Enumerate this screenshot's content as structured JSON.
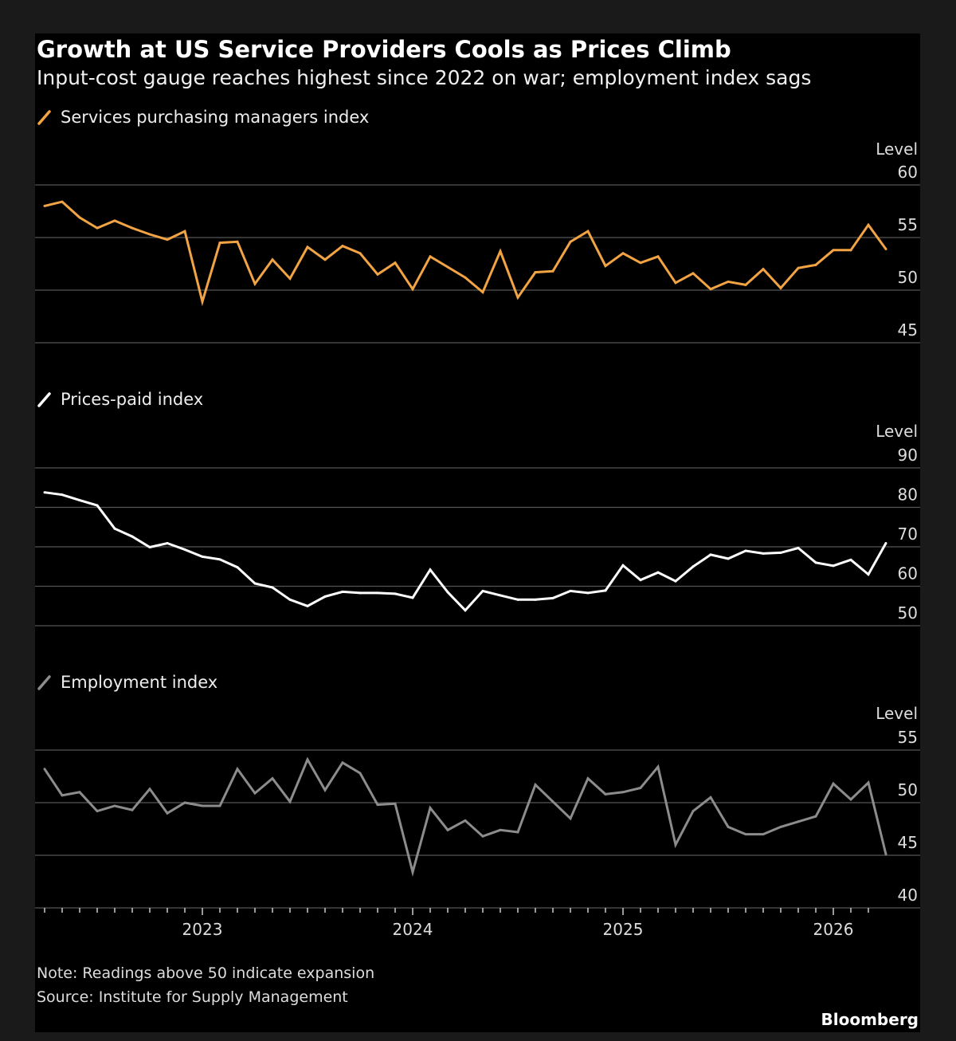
{
  "header": {
    "title": "Growth at US Service Providers Cools as Prices Climb",
    "subtitle": "Input-cost gauge reaches highest since 2022 on war; employment index sags"
  },
  "footer": {
    "note": "Note: Readings above 50 indicate expansion",
    "source": "Source: Institute for Supply Management",
    "brand": "Bloomberg"
  },
  "chart_data": [
    {
      "type": "line",
      "legend": "Services purchasing managers index",
      "color": "#f2a444",
      "ylabel": "Level",
      "ylim": [
        45,
        60
      ],
      "yticks": [
        60,
        55,
        50,
        45
      ],
      "grid": true,
      "x": [
        "2022-03",
        "2022-04",
        "2022-05",
        "2022-06",
        "2022-07",
        "2022-08",
        "2022-09",
        "2022-10",
        "2022-11",
        "2022-12",
        "2023-01",
        "2023-02",
        "2023-03",
        "2023-04",
        "2023-05",
        "2023-06",
        "2023-07",
        "2023-08",
        "2023-09",
        "2023-10",
        "2023-11",
        "2023-12",
        "2024-01",
        "2024-02",
        "2024-03",
        "2024-04",
        "2024-05",
        "2024-06",
        "2024-07",
        "2024-08",
        "2024-09",
        "2024-10",
        "2024-11",
        "2024-12",
        "2025-01",
        "2025-02",
        "2025-03",
        "2025-04",
        "2025-05",
        "2025-06",
        "2025-07",
        "2025-08",
        "2025-09",
        "2025-10",
        "2025-11",
        "2025-12",
        "2026-01",
        "2026-02",
        "2026-03"
      ],
      "values": [
        58.0,
        58.4,
        56.9,
        55.9,
        56.6,
        55.9,
        55.3,
        54.8,
        55.6,
        48.9,
        54.5,
        54.6,
        50.6,
        52.9,
        51.1,
        54.1,
        52.9,
        54.2,
        53.5,
        51.5,
        52.6,
        50.1,
        53.2,
        52.2,
        51.2,
        49.8,
        53.7,
        49.3,
        51.7,
        51.8,
        54.6,
        55.6,
        52.3,
        53.5,
        52.6,
        53.2,
        50.7,
        51.6,
        50.1,
        50.8,
        50.5,
        52.0,
        50.2,
        52.1,
        52.4,
        53.8,
        53.8,
        56.2,
        53.9
      ]
    },
    {
      "type": "line",
      "legend": "Prices-paid index",
      "color": "#ffffff",
      "ylabel": "Level",
      "ylim": [
        50,
        90
      ],
      "yticks": [
        90,
        80,
        70,
        60,
        50
      ],
      "grid": true,
      "values": [
        83.8,
        83.2,
        81.8,
        80.5,
        74.6,
        72.6,
        69.9,
        70.9,
        69.3,
        67.5,
        66.8,
        64.8,
        60.7,
        59.7,
        56.6,
        55.0,
        57.4,
        58.6,
        58.3,
        58.3,
        58.1,
        57.1,
        64.2,
        58.5,
        53.9,
        58.8,
        57.7,
        56.6,
        56.6,
        57.0,
        58.8,
        58.3,
        58.9,
        65.3,
        61.6,
        63.5,
        61.3,
        65.0,
        68.0,
        67.0,
        69.0,
        68.3,
        68.5,
        69.7,
        66.0,
        65.2,
        66.7,
        63.0,
        70.9
      ]
    },
    {
      "type": "line",
      "legend": "Employment index",
      "color": "#8c8c8c",
      "ylabel": "Level",
      "ylim": [
        40,
        55
      ],
      "yticks": [
        55,
        50,
        45,
        40
      ],
      "grid": true,
      "xticklabels": [
        "2023",
        "2024",
        "2025",
        "2026"
      ],
      "values": [
        53.2,
        50.7,
        51.0,
        49.2,
        49.7,
        49.3,
        51.3,
        49.0,
        50.0,
        49.7,
        49.7,
        53.2,
        50.9,
        52.3,
        50.1,
        54.1,
        51.2,
        53.8,
        52.8,
        49.8,
        49.9,
        43.4,
        49.5,
        47.4,
        48.3,
        46.8,
        47.4,
        47.2,
        51.7,
        50.1,
        48.5,
        52.3,
        50.8,
        51.0,
        51.4,
        53.4,
        46.0,
        49.2,
        50.5,
        47.7,
        47.0,
        47.0,
        47.7,
        48.2,
        48.7,
        51.8,
        50.3,
        51.9,
        45.1
      ]
    }
  ]
}
